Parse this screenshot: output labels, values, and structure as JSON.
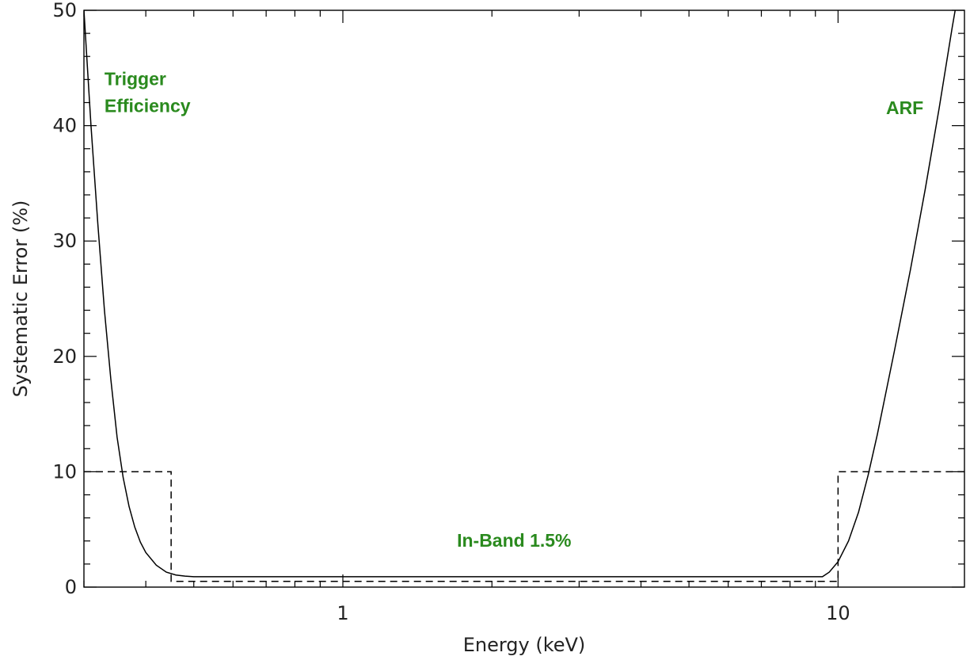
{
  "chart_data": {
    "type": "line",
    "title": "",
    "xlabel": "Energy (keV)",
    "ylabel": "Systematic Error (%)",
    "xscale": "log",
    "xlim": [
      0.3,
      18
    ],
    "ylim": [
      0,
      50
    ],
    "grid": false,
    "legend": "none",
    "x_tick_labels": [
      {
        "value": 1,
        "label": "1"
      },
      {
        "value": 10,
        "label": "10"
      }
    ],
    "y_tick_labels": [
      {
        "value": 0,
        "label": "0"
      },
      {
        "value": 10,
        "label": "10"
      },
      {
        "value": 20,
        "label": "20"
      },
      {
        "value": 30,
        "label": "30"
      },
      {
        "value": 40,
        "label": "40"
      },
      {
        "value": 50,
        "label": "50"
      }
    ],
    "series": [
      {
        "style": "solid",
        "x": [
          0.3,
          0.31,
          0.32,
          0.33,
          0.34,
          0.35,
          0.36,
          0.37,
          0.38,
          0.39,
          0.4,
          0.42,
          0.44,
          0.46,
          0.48,
          0.5,
          0.6,
          1,
          2,
          5,
          8,
          9.3,
          9.6,
          10,
          10.5,
          11,
          11.5,
          12,
          13,
          14,
          15,
          16,
          17,
          17.4
        ],
        "y": [
          50,
          40,
          31.5,
          24,
          18,
          13,
          9.5,
          7,
          5.2,
          3.9,
          3,
          1.9,
          1.3,
          1.05,
          0.95,
          0.9,
          0.9,
          0.9,
          0.9,
          0.9,
          0.9,
          0.9,
          1.3,
          2.2,
          4,
          6.5,
          9.7,
          13.2,
          20.5,
          27.5,
          34.5,
          41.5,
          48.5,
          51
        ]
      },
      {
        "style": "dashed",
        "x": [
          0.3,
          0.45,
          0.45,
          10,
          10,
          18
        ],
        "y": [
          10,
          10,
          0.5,
          0.5,
          10,
          10
        ]
      }
    ],
    "annotations": [
      {
        "lines": [
          "Trigger",
          "Efficiency"
        ],
        "x": 0.33,
        "y": 43.5
      },
      {
        "lines": [
          "ARF"
        ],
        "x": 12.5,
        "y": 41
      },
      {
        "lines": [
          "In-Band 1.5%"
        ],
        "x": 1.7,
        "y": 3.5
      }
    ],
    "annotation_color": "#2a8a1e"
  }
}
